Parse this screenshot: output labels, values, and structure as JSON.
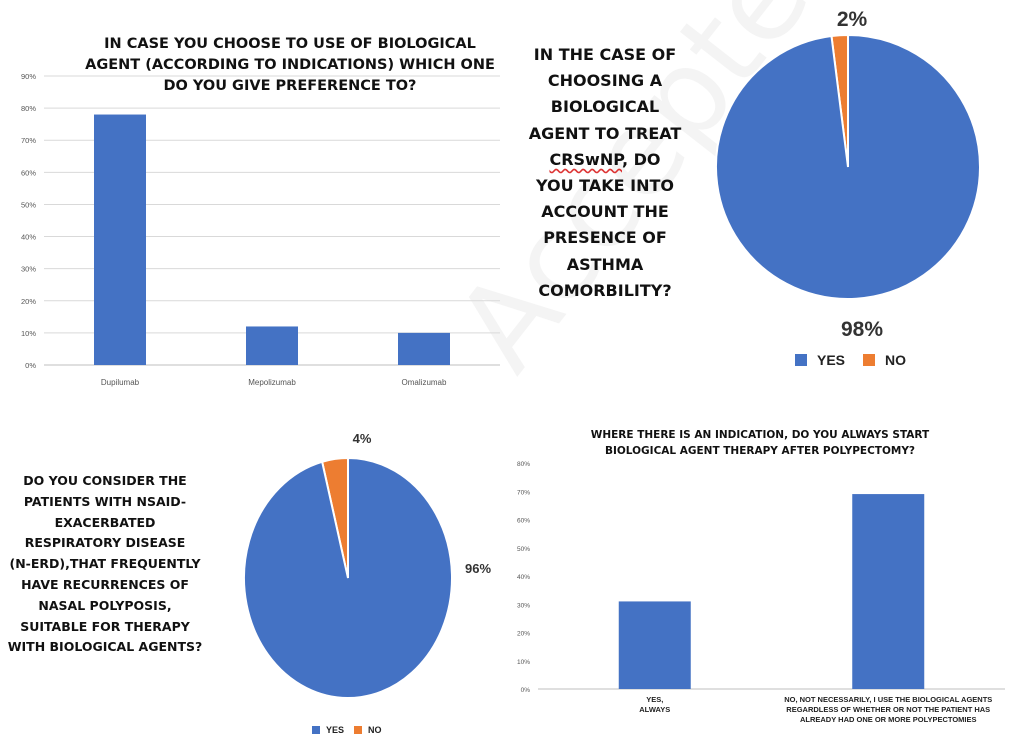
{
  "chart_data": [
    {
      "type": "bar",
      "title": "IN CASE YOU CHOOSE TO USE OF BIOLOGICAL AGENT (ACCORDING TO INDICATIONS) WHICH ONE DO YOU GIVE PREFERENCE TO?",
      "title_lines": [
        "IN CASE YOU CHOOSE TO USE OF BIOLOGICAL",
        "AGENT (ACCORDING TO INDICATIONS) WHICH ONE",
        "DO YOU GIVE PREFERENCE TO?"
      ],
      "categories": [
        "Dupilumab",
        "Mepolizumab",
        "Omalizumab"
      ],
      "values": [
        78,
        12,
        10
      ],
      "yticks": [
        "0%",
        "10%",
        "20%",
        "30%",
        "40%",
        "50%",
        "60%",
        "70%",
        "80%",
        "90%"
      ],
      "ylim": [
        0,
        90
      ],
      "grid": true,
      "color": "#4472C4"
    },
    {
      "type": "pie",
      "title": "IN THE CASE OF CHOOSING A BIOLOGICAL AGENT TO TREAT CRSwNP, DO YOU TAKE INTO ACCOUNT THE PRESENCE OF ASTHMA COMORBILITY?",
      "title_lines": [
        "IN THE CASE OF",
        "CHOOSING A",
        "BIOLOGICAL",
        "AGENT TO TREAT",
        "CRSwNP, DO",
        "YOU TAKE INTO",
        "ACCOUNT THE",
        "PRESENCE OF",
        "ASTHMA",
        "COMORBILITY?"
      ],
      "labels": [
        "YES",
        "NO"
      ],
      "values": [
        98,
        2
      ],
      "data_labels": [
        "98%",
        "2%"
      ],
      "colors": [
        "#4472C4",
        "#ED7D31"
      ],
      "legend": "bottom"
    },
    {
      "type": "pie",
      "title": "DO YOU CONSIDER THE PATIENTS WITH NSAID-EXACERBATED RESPIRATORY DISEASE (N-ERD),THAT FREQUENTLY HAVE RECURRENCES OF NASAL POLYPOSIS, SUITABLE FOR THERAPY WITH BIOLOGICAL AGENTS?",
      "title_lines": [
        "DO YOU CONSIDER  THE",
        "PATIENTS WITH NSAID-",
        "EXACERBATED",
        "RESPIRATORY DISEASE",
        "(N-ERD),THAT FREQUENTLY",
        "HAVE RECURRENCES OF",
        "NASAL POLYPOSIS,",
        "SUITABLE FOR THERAPY",
        "WITH BIOLOGICAL AGENTS?"
      ],
      "labels": [
        "YES",
        "NO"
      ],
      "values": [
        96,
        4
      ],
      "data_labels": [
        "96%",
        "4%"
      ],
      "colors": [
        "#4472C4",
        "#ED7D31"
      ],
      "legend": "bottom"
    },
    {
      "type": "bar",
      "title": "WHERE THERE IS AN INDICATION, DO YOU ALWAYS START BIOLOGICAL AGENT THERAPY AFTER POLYPECTOMY?",
      "title_lines": [
        "WHERE THERE IS AN INDICATION, DO YOU ALWAYS START",
        "BIOLOGICAL AGENT THERAPY AFTER POLYPECTOMY?"
      ],
      "categories": [
        [
          "YES,",
          "ALWAYS"
        ],
        [
          "NO, NOT NECESSARILY, I USE THE BIOLOGICAL AGENTS",
          "REGARDLESS OF WHETHER OR NOT THE PATIENT HAS",
          "ALREADY HAD ONE OR MORE POLYPECTOMIES"
        ]
      ],
      "values": [
        31,
        69
      ],
      "yticks": [
        "0%",
        "10%",
        "20%",
        "30%",
        "40%",
        "50%",
        "60%",
        "70%",
        "80%"
      ],
      "ylim": [
        0,
        80
      ],
      "grid": false,
      "color": "#4472C4"
    }
  ],
  "watermark": "Accepted for publication"
}
